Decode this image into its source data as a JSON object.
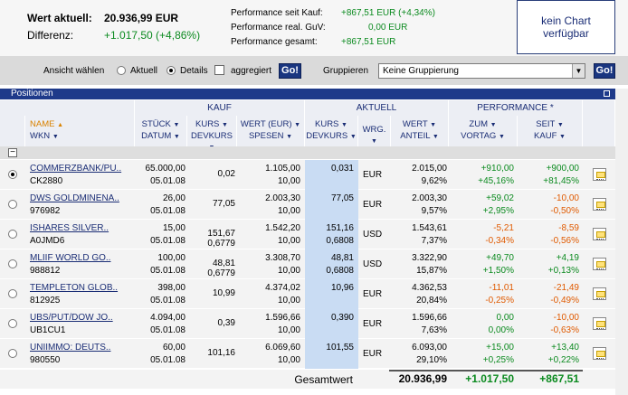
{
  "summary": {
    "wert_label": "Wert aktuell:",
    "wert_value": "20.936,99 EUR",
    "diff_label": "Differenz:",
    "diff_value": "+1.017,50 (+4,86%)",
    "perf_kauf_label": "Performance seit Kauf:",
    "perf_kauf_value": "+867,51 EUR (+4,34%)",
    "perf_guv_label": "Performance real. GuV:",
    "perf_guv_value": "0,00 EUR",
    "perf_ges_label": "Performance gesamt:",
    "perf_ges_value": "+867,51 EUR",
    "chart_line1": "kein Chart",
    "chart_line2": "verfügbar"
  },
  "viewbar": {
    "ansicht_label": "Ansicht wählen",
    "aktuell_label": "Aktuell",
    "details_label": "Details",
    "aggregiert_label": "aggregiert",
    "go_label": "Go!",
    "gruppieren_label": "Gruppieren",
    "gruppieren_value": "Keine Gruppierung",
    "go2_label": "Go!"
  },
  "table": {
    "section_title": "Positionen",
    "groups": {
      "kauf": "KAUF",
      "aktuell": "AKTUELL",
      "performance": "PERFORMANCE *"
    },
    "headers": {
      "name": "NAME",
      "wkn": "WKN",
      "stueck": "STÜCK",
      "datum": "DATUM",
      "kurs": "KURS",
      "devkurs": "DEVKURS",
      "wert": "WERT (EUR)",
      "spesen": "SPESEN",
      "akurs": "KURS",
      "adevkurs": "DEVKURS",
      "wrg": "WRG.",
      "awert": "WERT",
      "anteil": "ANTEIL",
      "zum": "ZUM",
      "vortag": "VORTAG",
      "seit": "SEIT",
      "kauf": "KAUF"
    },
    "rows": [
      {
        "name": "COMMERZBANK/PU..",
        "wkn": "CK2880",
        "stueck": "65.000,00",
        "datum": "05.01.08",
        "kurs": "0,02",
        "devkurs": "",
        "wert": "1.105,00",
        "spesen": "10,00",
        "akurs": "0,031",
        "adevkurs": "",
        "wrg": "EUR",
        "awert": "2.015,00",
        "anteil": "9,62%",
        "vortag_abs": "+910,00",
        "vortag_pct": "+45,16%",
        "kauf_abs": "+900,00",
        "kauf_pct": "+81,45%",
        "selected": true,
        "vortag_pos": true,
        "kauf_pos": true
      },
      {
        "name": "DWS GOLDMINENA..",
        "wkn": "976982",
        "stueck": "26,00",
        "datum": "05.01.08",
        "kurs": "77,05",
        "devkurs": "",
        "wert": "2.003,30",
        "spesen": "10,00",
        "akurs": "77,05",
        "adevkurs": "",
        "wrg": "EUR",
        "awert": "2.003,30",
        "anteil": "9,57%",
        "vortag_abs": "+59,02",
        "vortag_pct": "+2,95%",
        "kauf_abs": "-10,00",
        "kauf_pct": "-0,50%",
        "selected": false,
        "vortag_pos": true,
        "kauf_pos": false
      },
      {
        "name": "ISHARES SILVER..",
        "wkn": "A0JMD6",
        "stueck": "15,00",
        "datum": "05.01.08",
        "kurs": "151,67",
        "devkurs": "0,6779",
        "wert": "1.542,20",
        "spesen": "10,00",
        "akurs": "151,16",
        "adevkurs": "0,6808",
        "wrg": "USD",
        "awert": "1.543,61",
        "anteil": "7,37%",
        "vortag_abs": "-5,21",
        "vortag_pct": "-0,34%",
        "kauf_abs": "-8,59",
        "kauf_pct": "-0,56%",
        "selected": false,
        "vortag_pos": false,
        "kauf_pos": false
      },
      {
        "name": "MLIIF WORLD GO..",
        "wkn": "988812",
        "stueck": "100,00",
        "datum": "05.01.08",
        "kurs": "48,81",
        "devkurs": "0,6779",
        "wert": "3.308,70",
        "spesen": "10,00",
        "akurs": "48,81",
        "adevkurs": "0,6808",
        "wrg": "USD",
        "awert": "3.322,90",
        "anteil": "15,87%",
        "vortag_abs": "+49,70",
        "vortag_pct": "+1,50%",
        "kauf_abs": "+4,19",
        "kauf_pct": "+0,13%",
        "selected": false,
        "vortag_pos": true,
        "kauf_pos": true
      },
      {
        "name": "TEMPLETON GLOB..",
        "wkn": "812925",
        "stueck": "398,00",
        "datum": "05.01.08",
        "kurs": "10,99",
        "devkurs": "",
        "wert": "4.374,02",
        "spesen": "10,00",
        "akurs": "10,96",
        "adevkurs": "",
        "wrg": "EUR",
        "awert": "4.362,53",
        "anteil": "20,84%",
        "vortag_abs": "-11,01",
        "vortag_pct": "-0,25%",
        "kauf_abs": "-21,49",
        "kauf_pct": "-0,49%",
        "selected": false,
        "vortag_pos": false,
        "kauf_pos": false
      },
      {
        "name": "UBS/PUT/DOW JO..",
        "wkn": "UB1CU1",
        "stueck": "4.094,00",
        "datum": "05.01.08",
        "kurs": "0,39",
        "devkurs": "",
        "wert": "1.596,66",
        "spesen": "10,00",
        "akurs": "0,390",
        "adevkurs": "",
        "wrg": "EUR",
        "awert": "1.596,66",
        "anteil": "7,63%",
        "vortag_abs": "0,00",
        "vortag_pct": "0,00%",
        "kauf_abs": "-10,00",
        "kauf_pct": "-0,63%",
        "selected": false,
        "vortag_pos": true,
        "kauf_pos": false
      },
      {
        "name": "UNIIMMO: DEUTS..",
        "wkn": "980550",
        "stueck": "60,00",
        "datum": "05.01.08",
        "kurs": "101,16",
        "devkurs": "",
        "wert": "6.069,60",
        "spesen": "10,00",
        "akurs": "101,55",
        "adevkurs": "",
        "wrg": "EUR",
        "awert": "6.093,00",
        "anteil": "29,10%",
        "vortag_abs": "+15,00",
        "vortag_pct": "+0,25%",
        "kauf_abs": "+13,40",
        "kauf_pct": "+0,22%",
        "selected": false,
        "vortag_pos": true,
        "kauf_pos": true
      }
    ],
    "total_label": "Gesamtwert",
    "total_wert": "20.936,99",
    "total_vortag": "+1.017,50",
    "total_kauf": "+867,51"
  },
  "colors": {
    "green": "#0b8a1f",
    "red": "#e05a00",
    "navy": "#1e3a8a",
    "highlight": "#c9dcf3"
  }
}
